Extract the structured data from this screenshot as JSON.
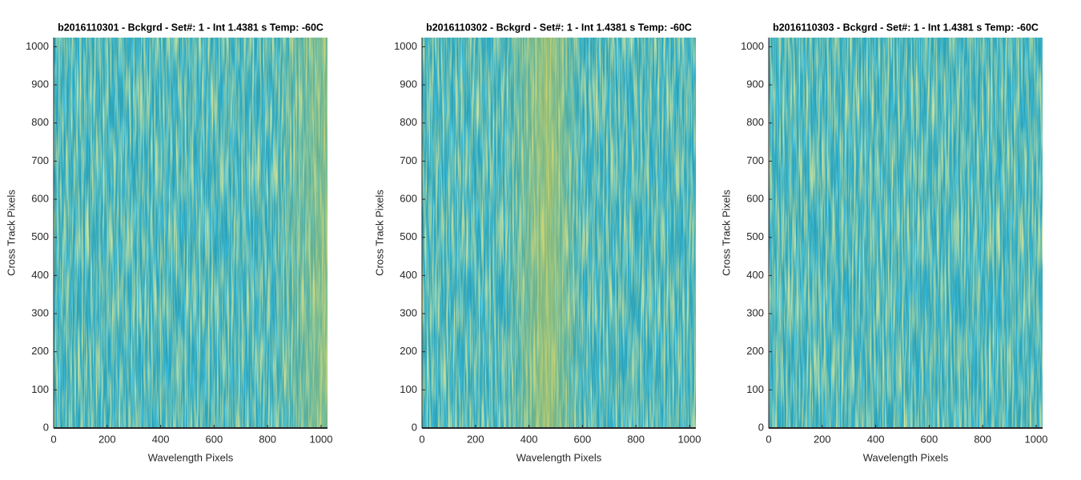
{
  "chart_data": [
    {
      "type": "heatmap",
      "title": "b2016110301 - Bckgrd - Set#: 1 - Int 1.4381 s Temp: -60C",
      "xlabel": "Wavelength Pixels",
      "ylabel": "Cross Track Pixels",
      "xlim": [
        0,
        1024
      ],
      "ylim": [
        0,
        1024
      ],
      "xticks": [
        0,
        200,
        400,
        600,
        800,
        1000
      ],
      "yticks": [
        0,
        100,
        200,
        300,
        400,
        500,
        600,
        700,
        800,
        900,
        1000
      ]
    },
    {
      "type": "heatmap",
      "title": "b2016110302 - Bckgrd - Set#: 1 - Int 1.4381 s Temp: -60C",
      "xlabel": "Wavelength Pixels",
      "ylabel": "Cross Track Pixels",
      "xlim": [
        0,
        1024
      ],
      "ylim": [
        0,
        1024
      ],
      "xticks": [
        0,
        200,
        400,
        600,
        800,
        1000
      ],
      "yticks": [
        0,
        100,
        200,
        300,
        400,
        500,
        600,
        700,
        800,
        900,
        1000
      ]
    },
    {
      "type": "heatmap",
      "title": "b2016110303 - Bckgrd - Set#: 1 - Int 1.4381 s Temp: -60C",
      "xlabel": "Wavelength Pixels",
      "ylabel": "Cross Track Pixels",
      "xlim": [
        0,
        1024
      ],
      "ylim": [
        0,
        1024
      ],
      "xticks": [
        0,
        200,
        400,
        600,
        800,
        1000
      ],
      "yticks": [
        0,
        100,
        200,
        300,
        400,
        500,
        600,
        700,
        800,
        900,
        1000
      ]
    }
  ]
}
